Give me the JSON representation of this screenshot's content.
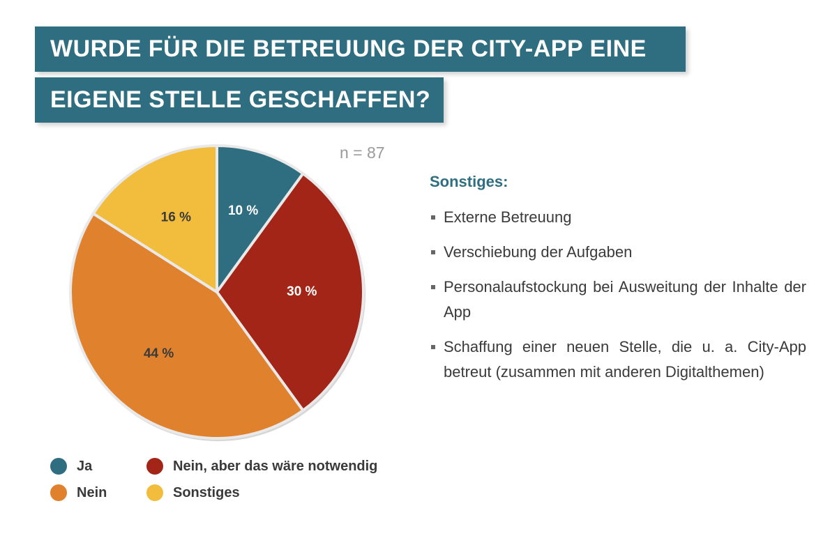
{
  "title": {
    "line1": "WURDE FÜR DIE BETREUUNG DER CITY-APP EINE",
    "line2": "EIGENE STELLE GESCHAFFEN?"
  },
  "sample_size": "n = 87",
  "colors": {
    "ja": "#2f6e80",
    "nein_notwendig": "#a22517",
    "nein": "#e0812d",
    "sonstiges": "#f2bc3c",
    "title_bg": "#2f6e80"
  },
  "chart_data": {
    "type": "pie",
    "slices": [
      {
        "name": "Ja",
        "value": 10,
        "label": "10 %",
        "color": "#2f6e80",
        "label_color": "#ffffff"
      },
      {
        "name": "Nein, aber das wäre notwendig",
        "value": 30,
        "label": "30 %",
        "color": "#a22517",
        "label_color": "#ffffff"
      },
      {
        "name": "Nein",
        "value": 44,
        "label": "44 %",
        "color": "#e0812d",
        "label_color": "#3a3a3a"
      },
      {
        "name": "Sonstiges",
        "value": 16,
        "label": "16 %",
        "color": "#f2bc3c",
        "label_color": "#3a3a3a"
      }
    ],
    "legend": {
      "placement": "bottom-left",
      "entries": [
        "Ja",
        "Nein, aber das wäre notwendig",
        "Nein",
        "Sonstiges"
      ]
    }
  },
  "notes": {
    "heading": "Sonstiges:",
    "items": [
      "Externe Betreuung",
      "Verschiebung der Aufgaben",
      "Personalaufstockung bei Ausweitung der Inhalte der App",
      "Schaffung einer neuen Stelle, die u. a. City-App betreut (zusammen mit anderen Digitalthemen)"
    ]
  }
}
